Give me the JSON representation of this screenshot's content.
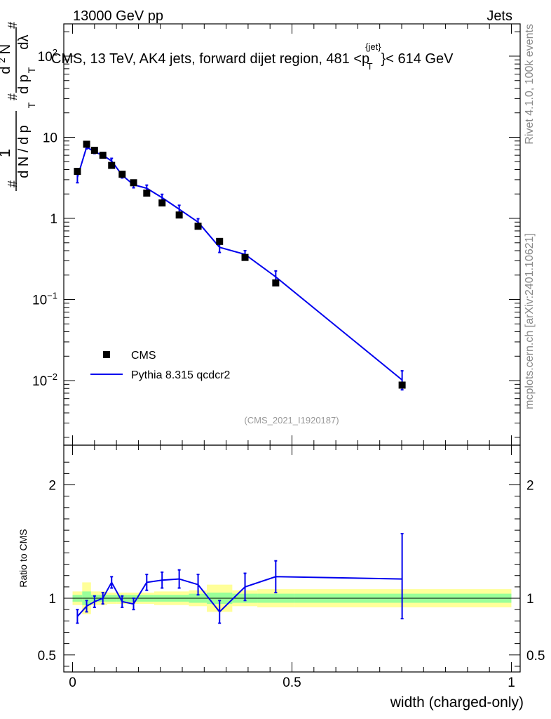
{
  "header": {
    "beam": "13000 GeV pp",
    "process": "Jets"
  },
  "side_labels": {
    "rivet": "Rivet 4.1.0,  100k events",
    "source": "mcplots.cern.ch [arXiv:2401.10621]"
  },
  "chart_data": [
    {
      "type": "scatter",
      "panel": "main",
      "title": "CMS, 13 TeV, AK4 jets, forward dijet region, 481 < p_T^{jet} < 614 GeV",
      "title_parts": [
        "CMS, 13 TeV, AK4 jets, forward dijet region, 481 <p",
        "{jet}",
        "T",
        "}< 614 GeV"
      ],
      "ylabel_parts": [
        "#",
        "1",
        "d N / d p",
        "T",
        "#",
        "d p",
        "T",
        "d",
        "2",
        "N",
        "dλ",
        "#"
      ],
      "watermark": "(CMS_2021_I1920187)",
      "xlim": [
        -0.02,
        1.02
      ],
      "ylim": [
        0.0016,
        250
      ],
      "yscale": "log",
      "yticks": [
        {
          "value": 0.01,
          "base": "10",
          "exp": "−2"
        },
        {
          "value": 0.1,
          "base": "10",
          "exp": "−1"
        },
        {
          "value": 1,
          "base": "1",
          "exp": ""
        },
        {
          "value": 10,
          "base": "10",
          "exp": ""
        },
        {
          "value": 100,
          "base": "10",
          "exp": "2"
        }
      ],
      "legend": {
        "position": "bottom-left",
        "entries": [
          "CMS",
          "Pythia 8.315 qcdcr2"
        ]
      },
      "series": [
        {
          "name": "CMS",
          "style": "markers",
          "color": "#000000",
          "x": [
            0.011,
            0.032,
            0.05,
            0.069,
            0.089,
            0.113,
            0.139,
            0.169,
            0.204,
            0.243,
            0.286,
            0.335,
            0.393,
            0.463,
            0.751
          ],
          "y": [
            3.8,
            8.2,
            6.9,
            6.0,
            4.5,
            3.5,
            2.75,
            2.05,
            1.55,
            1.1,
            0.8,
            0.52,
            0.33,
            0.16,
            0.0088
          ]
        },
        {
          "name": "Pythia 8.315 qcdcr2",
          "style": "line",
          "color": "#0000ee",
          "x": [
            0.011,
            0.032,
            0.05,
            0.069,
            0.089,
            0.113,
            0.139,
            0.169,
            0.204,
            0.243,
            0.286,
            0.335,
            0.393,
            0.463,
            0.751
          ],
          "y": [
            3.2,
            7.6,
            6.6,
            6.0,
            5.1,
            3.4,
            2.6,
            2.35,
            1.8,
            1.3,
            0.9,
            0.44,
            0.36,
            0.19,
            0.0102
          ],
          "err_lo": [
            0.45,
            0.4,
            0.3,
            0.3,
            0.4,
            0.25,
            0.22,
            0.22,
            0.18,
            0.15,
            0.09,
            0.06,
            0.04,
            0.035,
            0.0025
          ],
          "err_hi": [
            0.45,
            0.4,
            0.3,
            0.3,
            0.4,
            0.25,
            0.22,
            0.22,
            0.18,
            0.15,
            0.09,
            0.06,
            0.04,
            0.035,
            0.003
          ]
        }
      ]
    },
    {
      "type": "line",
      "panel": "ratio",
      "ylabel": "Ratio to CMS",
      "xlabel": "width (charged-only)",
      "xlim": [
        -0.02,
        1.02
      ],
      "ylim": [
        0.35,
        2.35
      ],
      "yticks": [
        {
          "value": 0.5,
          "label": "0.5"
        },
        {
          "value": 1,
          "label": "1"
        },
        {
          "value": 2,
          "label": "2"
        }
      ],
      "xticks": [
        {
          "value": 0,
          "label": "0"
        },
        {
          "value": 0.5,
          "label": "0.5"
        },
        {
          "value": 1,
          "label": "1"
        }
      ],
      "reference": 1.0,
      "uncertainty_bands": {
        "edges": [
          0.0,
          0.022,
          0.042,
          0.059,
          0.079,
          0.1,
          0.126,
          0.152,
          0.186,
          0.222,
          0.265,
          0.306,
          0.364,
          0.421,
          0.505,
          1.0
        ],
        "stat_lo": [
          0.97,
          0.94,
          0.97,
          0.97,
          0.97,
          0.97,
          0.97,
          0.97,
          0.97,
          0.97,
          0.96,
          0.95,
          0.96,
          0.96,
          0.96
        ],
        "stat_hi": [
          1.03,
          1.06,
          1.03,
          1.03,
          1.03,
          1.03,
          1.03,
          1.03,
          1.03,
          1.03,
          1.04,
          1.05,
          1.04,
          1.04,
          1.04
        ],
        "total_lo": [
          0.94,
          0.86,
          0.94,
          0.94,
          0.95,
          0.95,
          0.95,
          0.95,
          0.94,
          0.94,
          0.93,
          0.88,
          0.93,
          0.92,
          0.92
        ],
        "total_hi": [
          1.06,
          1.14,
          1.06,
          1.06,
          1.05,
          1.05,
          1.05,
          1.05,
          1.06,
          1.06,
          1.07,
          1.12,
          1.07,
          1.08,
          1.08
        ],
        "stat_color": "#99ff99",
        "total_color": "#ffff99"
      },
      "series": [
        {
          "name": "Pythia 8.315 qcdcr2",
          "color": "#0000ee",
          "x": [
            0.011,
            0.032,
            0.05,
            0.069,
            0.089,
            0.113,
            0.139,
            0.169,
            0.204,
            0.243,
            0.286,
            0.335,
            0.393,
            0.463,
            0.751
          ],
          "y": [
            0.84,
            0.93,
            0.97,
            1.0,
            1.14,
            0.97,
            0.95,
            1.14,
            1.16,
            1.17,
            1.12,
            0.88,
            1.1,
            1.19,
            1.17
          ],
          "err_lo": [
            0.06,
            0.05,
            0.05,
            0.05,
            0.05,
            0.05,
            0.05,
            0.07,
            0.07,
            0.08,
            0.09,
            0.1,
            0.12,
            0.14,
            0.35
          ],
          "err_hi": [
            0.06,
            0.05,
            0.05,
            0.05,
            0.05,
            0.05,
            0.05,
            0.07,
            0.07,
            0.08,
            0.09,
            0.1,
            0.12,
            0.14,
            0.4
          ]
        }
      ]
    }
  ]
}
